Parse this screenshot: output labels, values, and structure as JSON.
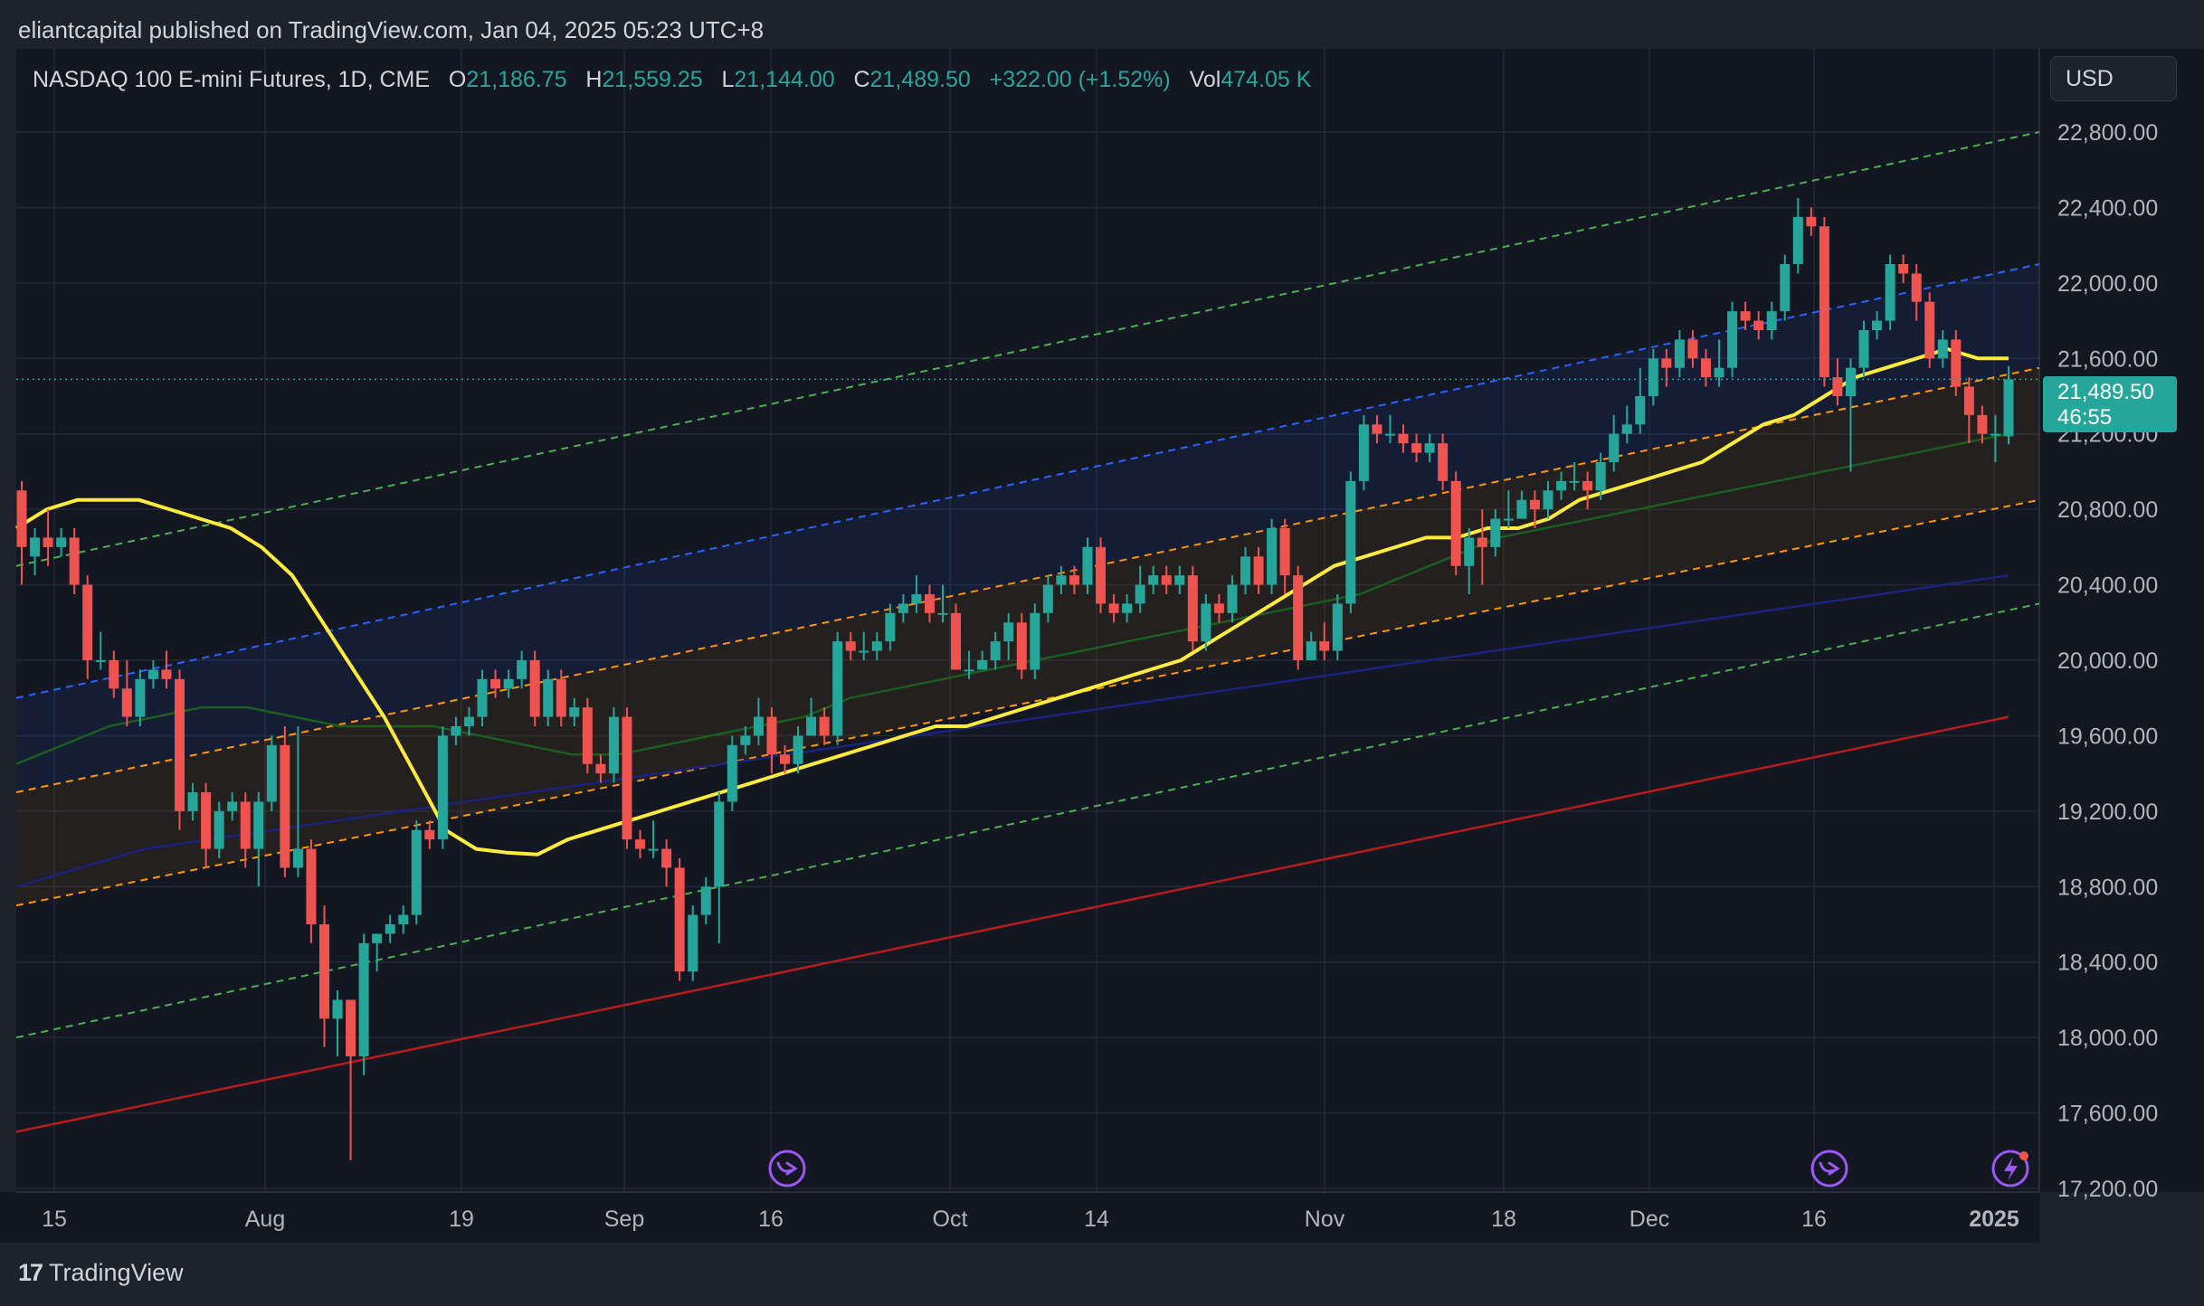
{
  "attribution": "eliantcapital published on TradingView.com, Jan 04, 2025 05:23 UTC+8",
  "legend": {
    "symbol": "NASDAQ 100 E-mini Futures, 1D, CME",
    "o_label": "O",
    "o_value": "21,186.75",
    "h_label": "H",
    "h_value": "21,559.25",
    "l_label": "L",
    "l_value": "21,144.00",
    "c_label": "C",
    "c_value": "21,489.50",
    "change": "+322.00 (+1.52%)",
    "vol_label": "Vol",
    "vol_value": "474.05 K"
  },
  "currency_button": "USD",
  "price_tag": {
    "price": "21,489.50",
    "countdown": "46:55"
  },
  "footer": {
    "logo_mark": "17",
    "logo_text": "TradingView"
  },
  "colors": {
    "background": "#131722",
    "up": "#26a69a",
    "down": "#ef5350",
    "ema_fast": "#ffeb3b",
    "ema_mid": "#1b5e20",
    "ema_slow": "#1a237e",
    "ema_long": "#b71c1c",
    "channel_outer": "#4caf50",
    "channel_inner": "#ff9800",
    "channel_upper": "#2962ff"
  },
  "icons": [
    "event-arrow-icon",
    "event-arrow-icon",
    "lightning-icon"
  ],
  "chart_data": {
    "type": "candlestick",
    "title": "NASDAQ 100 E-mini Futures, 1D, CME",
    "y_axis_ticks": [
      "22,800.00",
      "22,400.00",
      "22,000.00",
      "21,600.00",
      "21,200.00",
      "20,800.00",
      "20,400.00",
      "20,000.00",
      "19,600.00",
      "19,200.00",
      "18,800.00",
      "18,400.00",
      "18,000.00",
      "17,600.00",
      "17,200.00"
    ],
    "x_axis_ticks": [
      "15",
      "Aug",
      "19",
      "Sep",
      "16",
      "Oct",
      "14",
      "Nov",
      "18",
      "Dec",
      "16",
      "2025"
    ],
    "ylim": [
      17200,
      22800
    ],
    "candles": [
      [
        20900,
        20600,
        20950,
        20400
      ],
      [
        20550,
        20650,
        20700,
        20450
      ],
      [
        20650,
        20600,
        20800,
        20500
      ],
      [
        20600,
        20650,
        20700,
        20550
      ],
      [
        20650,
        20400,
        20700,
        20350
      ],
      [
        20400,
        20000,
        20450,
        19900
      ],
      [
        20000,
        20000,
        20150,
        19950
      ],
      [
        20000,
        19850,
        20050,
        19800
      ],
      [
        19850,
        19700,
        20000,
        19650
      ],
      [
        19700,
        19900,
        19950,
        19650
      ],
      [
        19900,
        19950,
        20000,
        19850
      ],
      [
        19950,
        19900,
        20050,
        19850
      ],
      [
        19900,
        19200,
        19950,
        19100
      ],
      [
        19200,
        19300,
        19350,
        19150
      ],
      [
        19300,
        19000,
        19350,
        18900
      ],
      [
        19000,
        19200,
        19250,
        18950
      ],
      [
        19200,
        19250,
        19300,
        19150
      ],
      [
        19250,
        19000,
        19300,
        18900
      ],
      [
        19000,
        19250,
        19300,
        18800
      ],
      [
        19250,
        19550,
        19600,
        19200
      ],
      [
        19550,
        18900,
        19650,
        18850
      ],
      [
        18900,
        19000,
        19650,
        18850
      ],
      [
        19000,
        18600,
        19050,
        18500
      ],
      [
        18600,
        18100,
        18700,
        17950
      ],
      [
        18100,
        18200,
        18250,
        17900
      ],
      [
        18200,
        17900,
        18150,
        17350
      ],
      [
        17900,
        18500,
        18550,
        17800
      ],
      [
        18500,
        18550,
        18550,
        18350
      ],
      [
        18550,
        18600,
        18650,
        18500
      ],
      [
        18600,
        18650,
        18700,
        18550
      ],
      [
        18650,
        19100,
        19150,
        18600
      ],
      [
        19100,
        19050,
        19150,
        19000
      ],
      [
        19050,
        19600,
        19650,
        19000
      ],
      [
        19600,
        19650,
        19700,
        19550
      ],
      [
        19650,
        19700,
        19750,
        19600
      ],
      [
        19700,
        19900,
        19950,
        19650
      ],
      [
        19900,
        19850,
        19950,
        19800
      ],
      [
        19850,
        19900,
        19950,
        19800
      ],
      [
        19900,
        20000,
        20050,
        19850
      ],
      [
        20000,
        19700,
        20050,
        19650
      ],
      [
        19700,
        19900,
        19950,
        19650
      ],
      [
        19900,
        19700,
        19950,
        19650
      ],
      [
        19700,
        19750,
        19800,
        19650
      ],
      [
        19750,
        19450,
        19800,
        19400
      ],
      [
        19450,
        19400,
        19500,
        19350
      ],
      [
        19400,
        19700,
        19750,
        19350
      ],
      [
        19700,
        19050,
        19750,
        19000
      ],
      [
        19050,
        19000,
        19100,
        18950
      ],
      [
        19000,
        19000,
        19150,
        18950
      ],
      [
        19000,
        18900,
        19050,
        18800
      ],
      [
        18900,
        18350,
        18950,
        18300
      ],
      [
        18350,
        18650,
        18700,
        18300
      ],
      [
        18650,
        18800,
        18850,
        18600
      ],
      [
        18800,
        19250,
        19300,
        18500
      ],
      [
        19250,
        19550,
        19600,
        19200
      ],
      [
        19550,
        19600,
        19650,
        19500
      ],
      [
        19600,
        19700,
        19800,
        19550
      ],
      [
        19700,
        19500,
        19750,
        19400
      ],
      [
        19500,
        19450,
        19550,
        19400
      ],
      [
        19450,
        19600,
        19650,
        19400
      ],
      [
        19600,
        19700,
        19800,
        19600
      ],
      [
        19700,
        19600,
        19750,
        19550
      ],
      [
        19600,
        20100,
        20150,
        19550
      ],
      [
        20100,
        20050,
        20150,
        20000
      ],
      [
        20050,
        20050,
        20150,
        20000
      ],
      [
        20050,
        20100,
        20150,
        20000
      ],
      [
        20100,
        20250,
        20300,
        20050
      ],
      [
        20250,
        20300,
        20350,
        20200
      ],
      [
        20300,
        20350,
        20450,
        20250
      ],
      [
        20350,
        20250,
        20400,
        20200
      ],
      [
        20250,
        20250,
        20400,
        20200
      ],
      [
        20250,
        19950,
        20300,
        19950
      ],
      [
        19950,
        19950,
        20050,
        19900
      ],
      [
        19950,
        20000,
        20050,
        19950
      ],
      [
        20000,
        20100,
        20150,
        19950
      ],
      [
        20100,
        20200,
        20250,
        20000
      ],
      [
        20200,
        19950,
        20250,
        19900
      ],
      [
        19950,
        20250,
        20300,
        19900
      ],
      [
        20250,
        20400,
        20450,
        20200
      ],
      [
        20400,
        20450,
        20500,
        20350
      ],
      [
        20450,
        20400,
        20500,
        20350
      ],
      [
        20400,
        20600,
        20650,
        20350
      ],
      [
        20600,
        20300,
        20650,
        20250
      ],
      [
        20300,
        20250,
        20350,
        20200
      ],
      [
        20250,
        20300,
        20350,
        20200
      ],
      [
        20300,
        20400,
        20500,
        20250
      ],
      [
        20400,
        20450,
        20500,
        20350
      ],
      [
        20450,
        20400,
        20500,
        20350
      ],
      [
        20400,
        20450,
        20500,
        20350
      ],
      [
        20450,
        20100,
        20500,
        20050
      ],
      [
        20100,
        20300,
        20350,
        20050
      ],
      [
        20300,
        20250,
        20350,
        20200
      ],
      [
        20250,
        20400,
        20450,
        20200
      ],
      [
        20400,
        20550,
        20600,
        20350
      ],
      [
        20550,
        20400,
        20600,
        20350
      ],
      [
        20400,
        20700,
        20750,
        20350
      ],
      [
        20700,
        20450,
        20750,
        20350
      ],
      [
        20450,
        20000,
        20500,
        19950
      ],
      [
        20000,
        20100,
        20150,
        20000
      ],
      [
        20100,
        20050,
        20200,
        20000
      ],
      [
        20050,
        20300,
        20350,
        20000
      ],
      [
        20300,
        20950,
        21000,
        20250
      ],
      [
        20950,
        21250,
        21300,
        20900
      ],
      [
        21250,
        21200,
        21300,
        21150
      ],
      [
        21200,
        21200,
        21300,
        21150
      ],
      [
        21200,
        21150,
        21250,
        21100
      ],
      [
        21150,
        21100,
        21200,
        21050
      ],
      [
        21100,
        21150,
        21200,
        21050
      ],
      [
        21150,
        20950,
        21200,
        20900
      ],
      [
        20950,
        20500,
        21000,
        20450
      ],
      [
        20500,
        20650,
        20700,
        20350
      ],
      [
        20650,
        20600,
        20800,
        20400
      ],
      [
        20600,
        20750,
        20800,
        20550
      ],
      [
        20750,
        20750,
        20900,
        20700
      ],
      [
        20750,
        20850,
        20900,
        20750
      ],
      [
        20850,
        20800,
        20900,
        20700
      ],
      [
        20800,
        20900,
        20950,
        20750
      ],
      [
        20900,
        20950,
        21000,
        20850
      ],
      [
        20950,
        20950,
        21050,
        20900
      ],
      [
        20950,
        20900,
        21000,
        20800
      ],
      [
        20900,
        21050,
        21100,
        20850
      ],
      [
        21050,
        21200,
        21300,
        21000
      ],
      [
        21200,
        21250,
        21350,
        21150
      ],
      [
        21250,
        21400,
        21550,
        21200
      ],
      [
        21400,
        21600,
        21650,
        21350
      ],
      [
        21600,
        21550,
        21650,
        21450
      ],
      [
        21550,
        21700,
        21750,
        21500
      ],
      [
        21700,
        21600,
        21750,
        21550
      ],
      [
        21600,
        21500,
        21650,
        21450
      ],
      [
        21500,
        21550,
        21700,
        21450
      ],
      [
        21550,
        21850,
        21900,
        21500
      ],
      [
        21850,
        21800,
        21900,
        21750
      ],
      [
        21800,
        21750,
        21850,
        21700
      ],
      [
        21750,
        21850,
        21900,
        21700
      ],
      [
        21850,
        22100,
        22150,
        21800
      ],
      [
        22100,
        22350,
        22450,
        22050
      ],
      [
        22350,
        22300,
        22400,
        22250
      ],
      [
        22300,
        21500,
        22350,
        21450
      ],
      [
        21500,
        21400,
        21600,
        21350
      ],
      [
        21400,
        21550,
        21600,
        21000
      ],
      [
        21550,
        21750,
        21800,
        21500
      ],
      [
        21750,
        21800,
        21850,
        21700
      ],
      [
        21800,
        22100,
        22150,
        21750
      ],
      [
        22100,
        22050,
        22150,
        22000
      ],
      [
        22050,
        21900,
        22100,
        21800
      ],
      [
        21900,
        21600,
        21950,
        21550
      ],
      [
        21600,
        21700,
        21750,
        21550
      ],
      [
        21700,
        21450,
        21750,
        21400
      ],
      [
        21450,
        21300,
        21500,
        21150
      ],
      [
        21300,
        21200,
        21350,
        21150
      ],
      [
        21200,
        21200,
        21300,
        21050
      ],
      [
        21186.75,
        21489.5,
        21559.25,
        21144
      ]
    ],
    "ema_fast": [
      20700,
      20800,
      20850,
      20850,
      20850,
      20800,
      20750,
      20700,
      20600,
      20450,
      20200,
      19950,
      19700,
      19400,
      19100,
      19000,
      18980,
      18970,
      19050,
      19100,
      19150,
      19200,
      19250,
      19300,
      19350,
      19400,
      19450,
      19500,
      19550,
      19600,
      19650,
      19650,
      19700,
      19750,
      19800,
      19850,
      19900,
      19950,
      20000,
      20100,
      20200,
      20300,
      20400,
      20500,
      20550,
      20600,
      20650,
      20650,
      20700,
      20700,
      20750,
      20850,
      20900,
      20950,
      21000,
      21050,
      21150,
      21250,
      21300,
      21400,
      21500,
      21550,
      21600,
      21650,
      21600,
      21600
    ],
    "ema_mid": [
      19450,
      19550,
      19650,
      19700,
      19750,
      19750,
      19700,
      19650,
      19650,
      19650,
      19600,
      19550,
      19500,
      19500,
      19550,
      19600,
      19650,
      19700,
      19800,
      19850,
      19900,
      19950,
      20000,
      20050,
      20100,
      20150,
      20200,
      20250,
      20300,
      20350,
      20450,
      20550,
      20650,
      20700,
      20750,
      20800,
      20850,
      20900,
      20950,
      21000,
      21050,
      21100,
      21150,
      21200
    ],
    "ema_slow": [
      18800,
      18900,
      19000,
      19050,
      19100,
      19150,
      19200,
      19250,
      19300,
      19350,
      19400,
      19450,
      19500,
      19550,
      19600,
      19650,
      19700,
      19750,
      19800,
      19850,
      19900,
      19950,
      20000,
      20050,
      20100,
      20150,
      20200,
      20250,
      20300,
      20350,
      20400,
      20450
    ],
    "ema_long": [
      17500,
      17600,
      17700,
      17800,
      17900,
      18000,
      18100,
      18200,
      18300,
      18400,
      18500,
      18600,
      18700,
      18800,
      18900,
      19000,
      19100,
      19200,
      19300,
      19400,
      19500,
      19600,
      19700
    ],
    "channel": {
      "outer_top": [
        20500,
        22800
      ],
      "inner_top": [
        19300,
        21550
      ],
      "upper_dashed": [
        19800,
        22100
      ],
      "inner_bottom": [
        18700,
        20850
      ],
      "outer_bottom": [
        18000,
        20300
      ]
    }
  }
}
